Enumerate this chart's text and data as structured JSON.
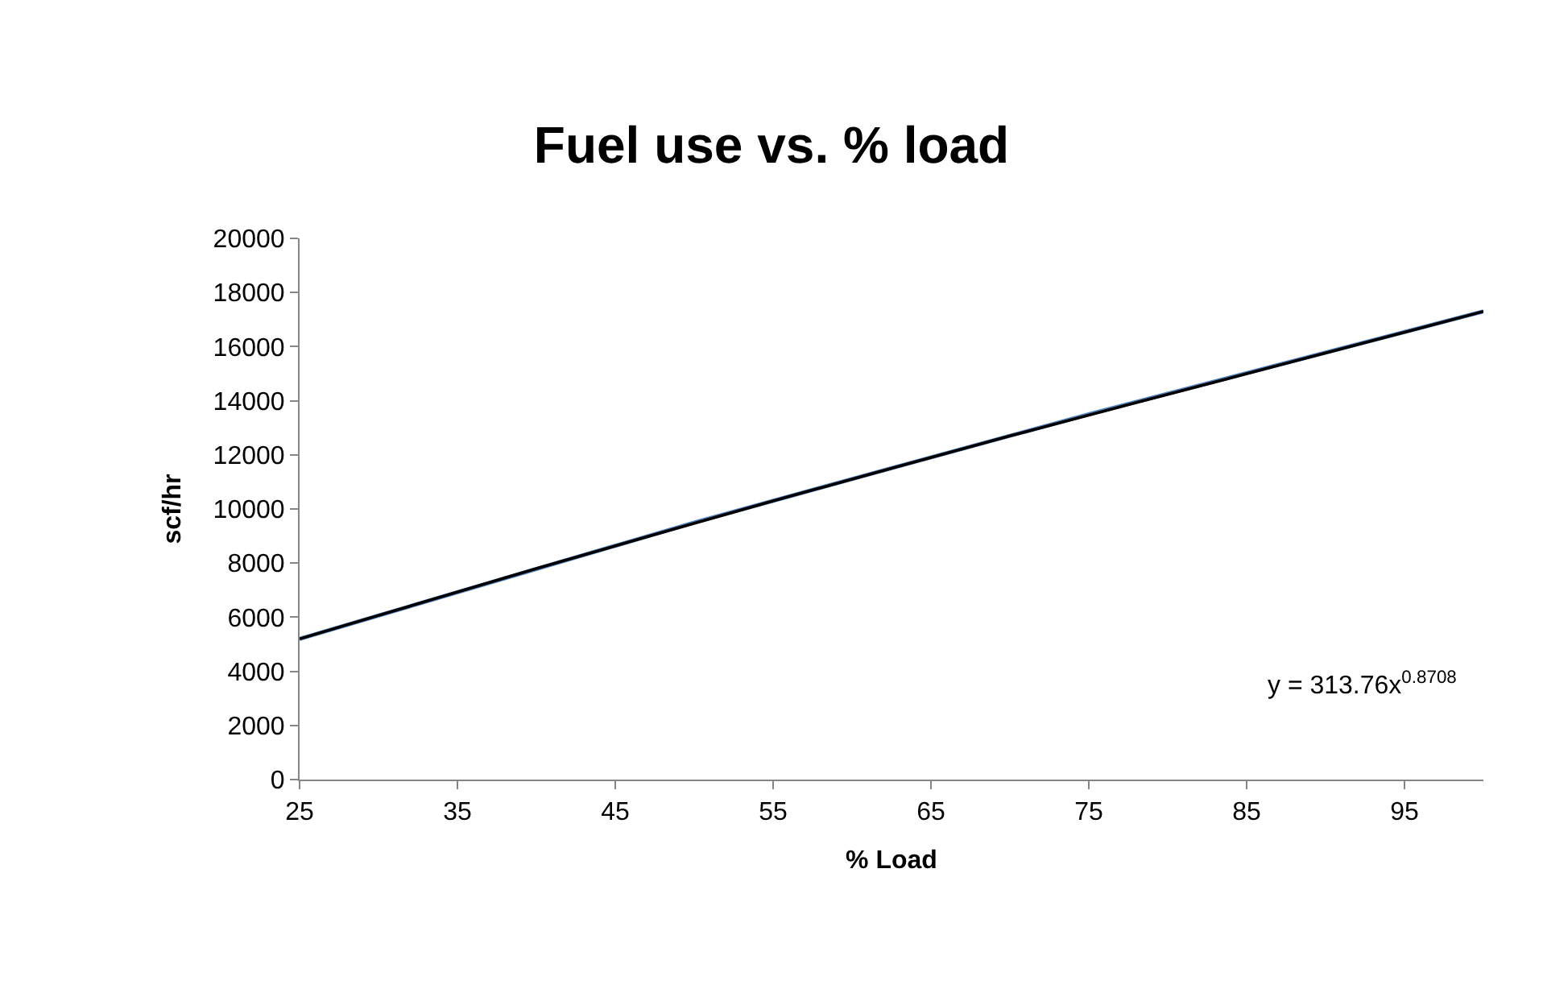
{
  "chart_data": {
    "type": "line",
    "title": "Fuel use vs. % load",
    "xlabel": "% Load",
    "ylabel": "scf/hr",
    "series": [
      {
        "color": "#4f81bd",
        "x": [
          25,
          50,
          75,
          100
        ],
        "values": [
          5200,
          9500,
          13500,
          17300
        ]
      },
      {
        "color": "#000000",
        "x": [
          25,
          40,
          55,
          70,
          85,
          100
        ],
        "values": [
          5200,
          7800,
          10300,
          12700,
          15000,
          17300
        ]
      }
    ],
    "xlim": [
      25,
      100
    ],
    "xticks": [
      25,
      35,
      45,
      55,
      65,
      75,
      85,
      95
    ],
    "ylim": [
      0,
      20000
    ],
    "yticks": [
      0,
      2000,
      4000,
      6000,
      8000,
      10000,
      12000,
      14000,
      16000,
      18000,
      20000
    ],
    "marker": "none",
    "line_style": "solid",
    "annotations": [
      "y = 313.76x$^{0.8708}$"
    ]
  }
}
